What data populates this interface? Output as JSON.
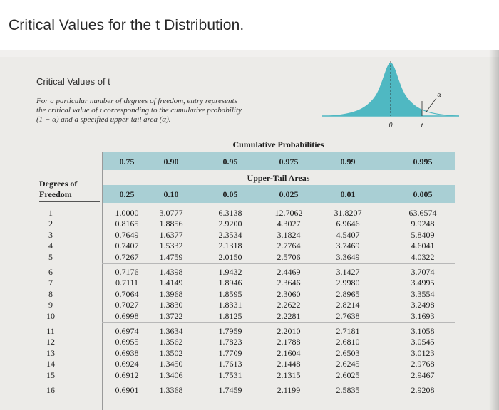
{
  "page_title": "Critical Values for the t Distribution.",
  "heading": "Critical Values of t",
  "description_lines": [
    "For a particular number of degrees of freedom, entry represents",
    "the critical value of t corresponding to the cumulative probability",
    "(1 − α) and a specified upper-tail area (α)."
  ],
  "curve_labels": {
    "zero": "0",
    "t": "t",
    "alpha": "α"
  },
  "colors": {
    "header_bar": "#a9cfd4",
    "curve_fill": "#4fb8c2"
  },
  "table": {
    "group_cumulative": "Cumulative Probabilities",
    "group_upper": "Upper-Tail Areas",
    "df_header_line1": "Degrees of",
    "df_header_line2": "Freedom",
    "cumulative": [
      "0.75",
      "0.90",
      "0.95",
      "0.975",
      "0.99",
      "0.995"
    ],
    "upper_tail": [
      "0.25",
      "0.10",
      "0.05",
      "0.025",
      "0.01",
      "0.005"
    ],
    "rows": [
      {
        "df": "1",
        "v": [
          "1.0000",
          "3.0777",
          "6.3138",
          "12.7062",
          "31.8207",
          "63.6574"
        ]
      },
      {
        "df": "2",
        "v": [
          "0.8165",
          "1.8856",
          "2.9200",
          "4.3027",
          "6.9646",
          "9.9248"
        ]
      },
      {
        "df": "3",
        "v": [
          "0.7649",
          "1.6377",
          "2.3534",
          "3.1824",
          "4.5407",
          "5.8409"
        ]
      },
      {
        "df": "4",
        "v": [
          "0.7407",
          "1.5332",
          "2.1318",
          "2.7764",
          "3.7469",
          "4.6041"
        ]
      },
      {
        "df": "5",
        "v": [
          "0.7267",
          "1.4759",
          "2.0150",
          "2.5706",
          "3.3649",
          "4.0322"
        ]
      },
      {
        "df": "6",
        "v": [
          "0.7176",
          "1.4398",
          "1.9432",
          "2.4469",
          "3.1427",
          "3.7074"
        ]
      },
      {
        "df": "7",
        "v": [
          "0.7111",
          "1.4149",
          "1.8946",
          "2.3646",
          "2.9980",
          "3.4995"
        ]
      },
      {
        "df": "8",
        "v": [
          "0.7064",
          "1.3968",
          "1.8595",
          "2.3060",
          "2.8965",
          "3.3554"
        ]
      },
      {
        "df": "9",
        "v": [
          "0.7027",
          "1.3830",
          "1.8331",
          "2.2622",
          "2.8214",
          "3.2498"
        ]
      },
      {
        "df": "10",
        "v": [
          "0.6998",
          "1.3722",
          "1.8125",
          "2.2281",
          "2.7638",
          "3.1693"
        ]
      },
      {
        "df": "11",
        "v": [
          "0.6974",
          "1.3634",
          "1.7959",
          "2.2010",
          "2.7181",
          "3.1058"
        ]
      },
      {
        "df": "12",
        "v": [
          "0.6955",
          "1.3562",
          "1.7823",
          "2.1788",
          "2.6810",
          "3.0545"
        ]
      },
      {
        "df": "13",
        "v": [
          "0.6938",
          "1.3502",
          "1.7709",
          "2.1604",
          "2.6503",
          "3.0123"
        ]
      },
      {
        "df": "14",
        "v": [
          "0.6924",
          "1.3450",
          "1.7613",
          "2.1448",
          "2.6245",
          "2.9768"
        ]
      },
      {
        "df": "15",
        "v": [
          "0.6912",
          "1.3406",
          "1.7531",
          "2.1315",
          "2.6025",
          "2.9467"
        ]
      },
      {
        "df": "16",
        "v": [
          "0.6901",
          "1.3368",
          "1.7459",
          "2.1199",
          "2.5835",
          "2.9208"
        ]
      }
    ]
  }
}
